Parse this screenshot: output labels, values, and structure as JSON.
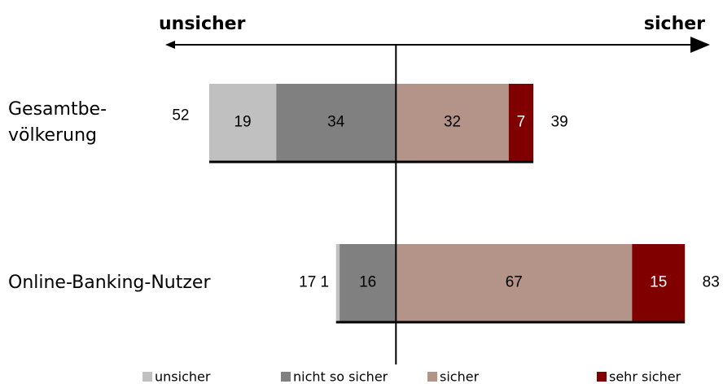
{
  "chart_data": {
    "type": "diverging_bar",
    "axis_left_label": "unsicher",
    "axis_right_label": "sicher",
    "categories": [
      "Gesamtbe-\nvölkerung",
      "Online-Banking-Nutzer"
    ],
    "series": [
      {
        "name": "unsicher",
        "color": "#c0c0c0",
        "side": "left",
        "values": [
          19,
          1
        ]
      },
      {
        "name": "nicht so sicher",
        "color": "#808080",
        "side": "left",
        "values": [
          34,
          16
        ]
      },
      {
        "name": "sicher",
        "color": "#b49488",
        "side": "right",
        "values": [
          32,
          67
        ]
      },
      {
        "name": "sehr sicher",
        "color": "#800000",
        "side": "right",
        "values": [
          7,
          15
        ]
      }
    ],
    "left_totals": [
      52,
      17
    ],
    "right_totals": [
      39,
      83
    ],
    "xlim": [
      -65,
      87.5
    ]
  }
}
